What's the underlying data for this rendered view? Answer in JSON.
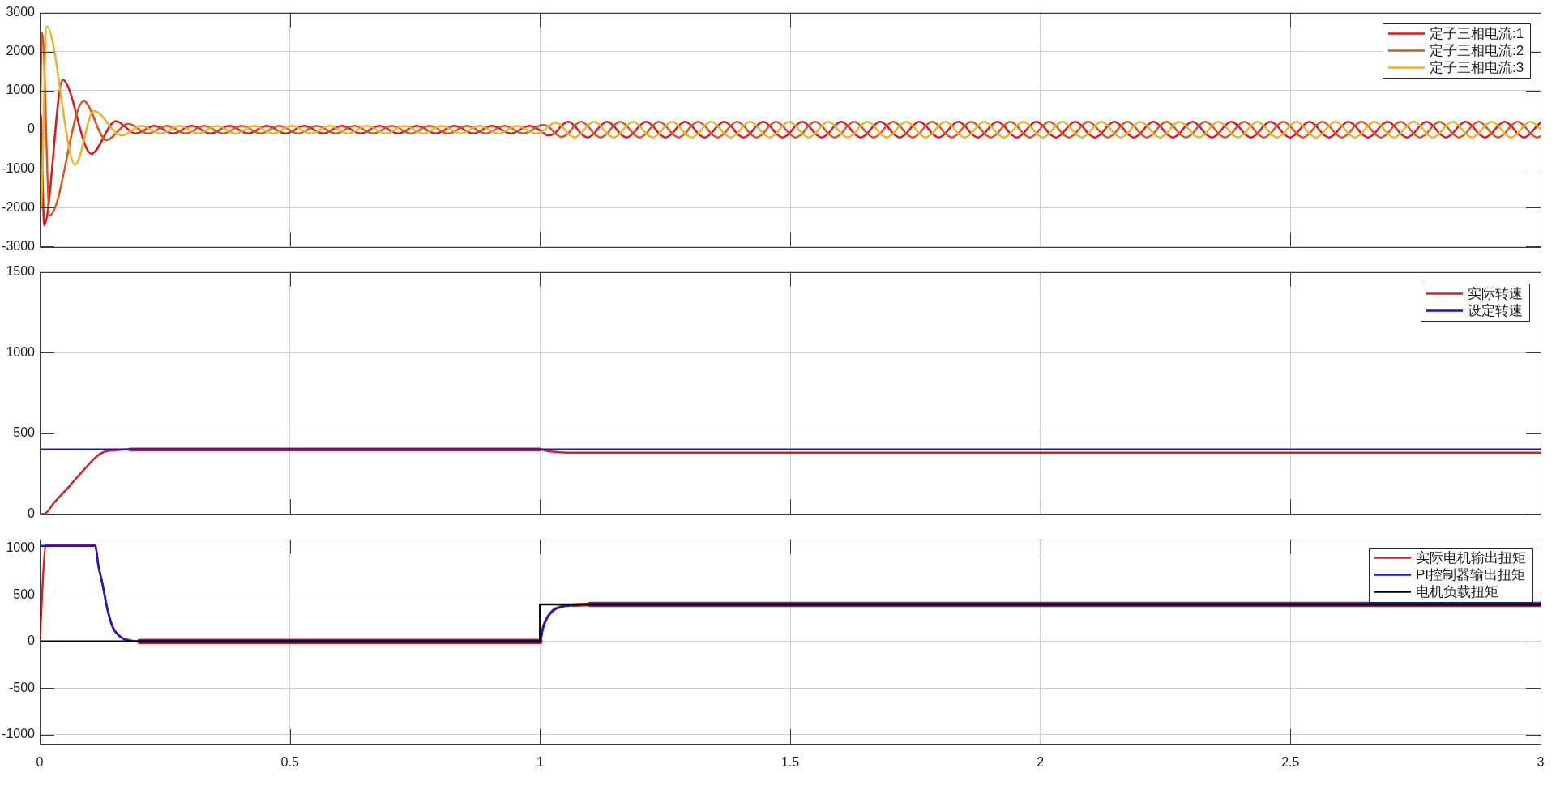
{
  "chart_data": [
    {
      "type": "line",
      "xlim": [
        0,
        3
      ],
      "xticks": [
        0,
        0.5,
        1,
        1.5,
        2,
        2.5,
        3
      ],
      "ylim": [
        -3000,
        3000
      ],
      "yticks": [
        -3000,
        -2000,
        -1000,
        0,
        1000,
        2000,
        3000
      ],
      "grid": true,
      "legend": "top right",
      "tick_labels": "y",
      "series": [
        {
          "name": "定子三相电流:1",
          "color": "#e0161b",
          "x": [
            0,
            0.002,
            0.009,
            0.046,
            0.103,
            0.152,
            0.192,
            0.229,
            0.2415,
            0.254,
            0.2665,
            0.279,
            0.2915,
            0.304,
            0.3165,
            0.329,
            0.3415,
            0.354,
            0.3665,
            0.379,
            0.3915,
            0.404,
            0.4165,
            0.429,
            0.4415,
            0.454,
            0.4665,
            0.479,
            0.4915,
            0.504,
            0.5165,
            0.529,
            0.5415,
            0.554,
            0.5665,
            0.579,
            0.5915,
            0.604,
            0.6165,
            0.629,
            0.6415,
            0.654,
            0.6665,
            0.679,
            0.6915,
            0.704,
            0.7165,
            0.729,
            0.7415,
            0.754,
            0.7665,
            0.779,
            0.7915,
            0.804,
            0.8165,
            0.829,
            0.8415,
            0.854,
            0.8665,
            0.879,
            0.8915,
            0.904,
            0.9165,
            0.929,
            0.9415,
            0.954,
            0.9665,
            0.979,
            0.9915,
            1.004,
            1.017,
            1.03,
            1.043,
            1.056,
            1.069,
            1.082,
            1.095,
            1.108,
            1.121,
            1.134,
            1.147,
            1.16,
            1.173,
            1.186,
            1.199,
            1.212,
            1.225,
            1.238,
            1.251,
            1.264,
            1.277,
            1.29,
            1.303,
            1.316,
            1.329,
            1.342,
            1.355,
            1.368,
            1.381,
            1.394,
            1.407,
            1.42,
            1.433,
            1.446,
            1.459,
            1.472,
            1.485,
            1.498,
            1.511,
            1.524,
            1.537,
            1.55,
            1.563,
            1.576,
            1.589,
            1.602,
            1.615,
            1.628,
            1.641,
            1.654,
            1.667,
            1.68,
            1.693,
            1.706,
            1.719,
            1.732,
            1.745,
            1.758,
            1.771,
            1.784,
            1.797,
            1.81,
            1.823,
            1.836,
            1.849,
            1.862,
            1.875,
            1.888,
            1.901,
            1.914,
            1.927,
            1.94,
            1.953,
            1.966,
            1.979,
            1.992,
            2.005,
            2.018,
            2.031,
            2.044,
            2.057,
            2.07,
            2.083,
            2.096,
            2.109,
            2.122,
            2.135,
            2.148,
            2.161,
            2.174,
            2.187,
            2.2,
            2.213,
            2.226,
            2.239,
            2.252,
            2.265,
            2.278,
            2.291,
            2.304,
            2.317,
            2.33,
            2.343,
            2.356,
            2.369,
            2.382,
            2.395,
            2.408,
            2.421,
            2.434,
            2.447,
            2.46,
            2.473,
            2.486,
            2.499,
            2.512,
            2.525,
            2.538,
            2.551,
            2.564,
            2.577,
            2.59,
            2.603,
            2.616,
            2.629,
            2.642,
            2.655,
            2.668,
            2.681,
            2.694,
            2.707,
            2.72,
            2.733,
            2.746,
            2.759,
            2.772,
            2.785,
            2.798,
            2.811,
            2.824,
            2.837,
            2.85,
            2.863,
            2.876,
            2.889,
            2.902,
            2.915,
            2.928,
            2.941,
            2.954,
            2.967,
            2.98,
            2.993,
            3
          ],
          "values": [
            0,
            400,
            -2450,
            1280,
            -620,
            220,
            -100,
            100,
            50,
            -50,
            -100,
            -50,
            50,
            100,
            50,
            -50,
            -100,
            -50,
            50,
            100,
            50,
            -50,
            -100,
            -50,
            50,
            100,
            50,
            -50,
            -100,
            -50,
            50,
            100,
            50,
            -50,
            -100,
            -50,
            50,
            100,
            50,
            -50,
            -100,
            -50,
            50,
            100,
            50,
            -50,
            -100,
            -50,
            50,
            100,
            50,
            -50,
            -100,
            -50,
            50,
            100,
            50,
            -50,
            -100,
            -50,
            50,
            100,
            50,
            -50,
            -100,
            -50,
            50,
            100,
            50,
            -60,
            -150,
            -90,
            100,
            200,
            100,
            -100,
            -200,
            -100,
            100,
            200,
            100,
            -100,
            -200,
            -100,
            100,
            200,
            100,
            -100,
            -200,
            -100,
            100,
            200,
            100,
            -100,
            -200,
            -100,
            100,
            200,
            100,
            -100,
            -200,
            -100,
            100,
            200,
            100,
            -100,
            -200,
            -100,
            100,
            200,
            100,
            -100,
            -200,
            -100,
            100,
            200,
            100,
            -100,
            -200,
            -100,
            100,
            200,
            100,
            -100,
            -200,
            -100,
            100,
            200,
            100,
            -100,
            -200,
            -100,
            100,
            200,
            100,
            -100,
            -200,
            -100,
            100,
            200,
            100,
            -100,
            -200,
            -100,
            100,
            200,
            100,
            -100,
            -200,
            -100,
            100,
            200,
            100,
            -100,
            -200,
            -100,
            100,
            200,
            100,
            -100,
            -200,
            -100,
            100,
            200,
            100,
            -100,
            -200,
            -100,
            100,
            200,
            100,
            -100,
            -200,
            -100,
            100,
            200,
            100,
            -100,
            -200,
            -100,
            100,
            200,
            100,
            -100,
            -200,
            -100,
            100,
            200,
            100,
            -100,
            -200,
            -100,
            100,
            200,
            100,
            -100,
            -200,
            -100,
            100,
            200,
            100,
            -100,
            -200,
            -100,
            100,
            200,
            100,
            -100,
            -200,
            -100,
            100,
            200,
            100,
            -100,
            -200,
            -100,
            100,
            200,
            100,
            -100,
            -200,
            -100,
            100,
            180
          ]
        },
        {
          "name": "定子三相电流:2",
          "color": "#d9541f",
          "x": [
            0,
            0.005,
            0.02,
            0.088,
            0.133,
            0.177,
            0.2165,
            0.229,
            0.2415,
            0.254,
            0.2665,
            0.279,
            0.2915,
            0.304,
            0.3165,
            0.329,
            0.3415,
            0.354,
            0.3665,
            0.379,
            0.3915,
            0.404,
            0.4165,
            0.429,
            0.4415,
            0.454,
            0.4665,
            0.479,
            0.4915,
            0.504,
            0.5165,
            0.529,
            0.5415,
            0.554,
            0.5665,
            0.579,
            0.5915,
            0.604,
            0.6165,
            0.629,
            0.6415,
            0.654,
            0.6665,
            0.679,
            0.6915,
            0.704,
            0.7165,
            0.729,
            0.7415,
            0.754,
            0.7665,
            0.779,
            0.7915,
            0.804,
            0.8165,
            0.829,
            0.8415,
            0.854,
            0.8665,
            0.879,
            0.8915,
            0.904,
            0.9165,
            0.929,
            0.9415,
            0.954,
            0.9665,
            0.979,
            0.9915,
            1.004,
            1.017,
            1.03,
            1.043,
            1.056,
            1.069,
            1.082,
            1.095,
            1.108,
            1.121,
            1.134,
            1.147,
            1.16,
            1.173,
            1.186,
            1.199,
            1.212,
            1.225,
            1.238,
            1.251,
            1.264,
            1.277,
            1.29,
            1.303,
            1.316,
            1.329,
            1.342,
            1.355,
            1.368,
            1.381,
            1.394,
            1.407,
            1.42,
            1.433,
            1.446,
            1.459,
            1.472,
            1.485,
            1.498,
            1.511,
            1.524,
            1.537,
            1.55,
            1.563,
            1.576,
            1.589,
            1.602,
            1.615,
            1.628,
            1.641,
            1.654,
            1.667,
            1.68,
            1.693,
            1.706,
            1.719,
            1.732,
            1.745,
            1.758,
            1.771,
            1.784,
            1.797,
            1.81,
            1.823,
            1.836,
            1.849,
            1.862,
            1.875,
            1.888,
            1.901,
            1.914,
            1.927,
            1.94,
            1.953,
            1.966,
            1.979,
            1.992,
            2.005,
            2.018,
            2.031,
            2.044,
            2.057,
            2.07,
            2.083,
            2.096,
            2.109,
            2.122,
            2.135,
            2.148,
            2.161,
            2.174,
            2.187,
            2.2,
            2.213,
            2.226,
            2.239,
            2.252,
            2.265,
            2.278,
            2.291,
            2.304,
            2.317,
            2.33,
            2.343,
            2.356,
            2.369,
            2.382,
            2.395,
            2.408,
            2.421,
            2.434,
            2.447,
            2.46,
            2.473,
            2.486,
            2.499,
            2.512,
            2.525,
            2.538,
            2.551,
            2.564,
            2.577,
            2.59,
            2.603,
            2.616,
            2.629,
            2.642,
            2.655,
            2.668,
            2.681,
            2.694,
            2.707,
            2.72,
            2.733,
            2.746,
            2.759,
            2.772,
            2.785,
            2.798,
            2.811,
            2.824,
            2.837,
            2.85,
            2.863,
            2.876,
            2.889,
            2.902,
            2.915,
            2.928,
            2.941,
            2.954,
            2.967,
            2.98,
            2.993,
            3
          ],
          "values": [
            0,
            2480,
            -2200,
            730,
            -270,
            150,
            -100,
            -50,
            50,
            100,
            50,
            -50,
            -100,
            -50,
            50,
            100,
            50,
            -50,
            -100,
            -50,
            50,
            100,
            50,
            -50,
            -100,
            -50,
            50,
            100,
            50,
            -50,
            -100,
            -50,
            50,
            100,
            50,
            -50,
            -100,
            -50,
            50,
            100,
            50,
            -50,
            -100,
            -50,
            50,
            100,
            50,
            -50,
            -100,
            -50,
            50,
            100,
            50,
            -50,
            -100,
            -50,
            50,
            100,
            50,
            -50,
            -100,
            -50,
            50,
            100,
            50,
            -50,
            -100,
            -50,
            50,
            120,
            80,
            -90,
            -190,
            -100,
            100,
            200,
            100,
            -100,
            -200,
            -100,
            100,
            200,
            100,
            -100,
            -200,
            -100,
            100,
            200,
            100,
            -100,
            -200,
            -100,
            100,
            200,
            100,
            -100,
            -200,
            -100,
            100,
            200,
            100,
            -100,
            -200,
            -100,
            100,
            200,
            100,
            -100,
            -200,
            -100,
            100,
            200,
            100,
            -100,
            -200,
            -100,
            100,
            200,
            100,
            -100,
            -200,
            -100,
            100,
            200,
            100,
            -100,
            -200,
            -100,
            100,
            200,
            100,
            -100,
            -200,
            -100,
            100,
            200,
            100,
            -100,
            -200,
            -100,
            100,
            200,
            100,
            -100,
            -200,
            -100,
            100,
            200,
            100,
            -100,
            -200,
            -100,
            100,
            200,
            100,
            -100,
            -200,
            -100,
            100,
            200,
            100,
            -100,
            -200,
            -100,
            100,
            200,
            100,
            -100,
            -200,
            -100,
            100,
            200,
            100,
            -100,
            -200,
            -100,
            100,
            200,
            100,
            -100,
            -200,
            -100,
            100,
            200,
            100,
            -100,
            -200,
            -100,
            100,
            200,
            100,
            -100,
            -200,
            -100,
            100,
            200,
            100,
            -100,
            -200,
            -100,
            100,
            200,
            100,
            -100,
            -200,
            -100,
            100,
            200,
            100,
            -100,
            -200,
            -100,
            100,
            200,
            100,
            -100,
            -200,
            -100,
            100,
            200,
            100,
            -100,
            -200,
            -170
          ]
        },
        {
          "name": "定子三相电流:3",
          "color": "#ebb12a",
          "x": [
            0,
            0.002,
            0.014,
            0.071,
            0.108,
            0.164,
            0.204,
            0.229,
            0.2415,
            0.254,
            0.2665,
            0.279,
            0.2915,
            0.304,
            0.3165,
            0.329,
            0.3415,
            0.354,
            0.3665,
            0.379,
            0.3915,
            0.404,
            0.4165,
            0.429,
            0.4415,
            0.454,
            0.4665,
            0.479,
            0.4915,
            0.504,
            0.5165,
            0.529,
            0.5415,
            0.554,
            0.5665,
            0.579,
            0.5915,
            0.604,
            0.6165,
            0.629,
            0.6415,
            0.654,
            0.6665,
            0.679,
            0.6915,
            0.704,
            0.7165,
            0.729,
            0.7415,
            0.754,
            0.7665,
            0.779,
            0.7915,
            0.804,
            0.8165,
            0.829,
            0.8415,
            0.854,
            0.8665,
            0.879,
            0.8915,
            0.904,
            0.9165,
            0.929,
            0.9415,
            0.954,
            0.9665,
            0.979,
            0.9915,
            1.004,
            1.017,
            1.03,
            1.043,
            1.056,
            1.069,
            1.082,
            1.095,
            1.108,
            1.121,
            1.134,
            1.147,
            1.16,
            1.173,
            1.186,
            1.199,
            1.212,
            1.225,
            1.238,
            1.251,
            1.264,
            1.277,
            1.29,
            1.303,
            1.316,
            1.329,
            1.342,
            1.355,
            1.368,
            1.381,
            1.394,
            1.407,
            1.42,
            1.433,
            1.446,
            1.459,
            1.472,
            1.485,
            1.498,
            1.511,
            1.524,
            1.537,
            1.55,
            1.563,
            1.576,
            1.589,
            1.602,
            1.615,
            1.628,
            1.641,
            1.654,
            1.667,
            1.68,
            1.693,
            1.706,
            1.719,
            1.732,
            1.745,
            1.758,
            1.771,
            1.784,
            1.797,
            1.81,
            1.823,
            1.836,
            1.849,
            1.862,
            1.875,
            1.888,
            1.901,
            1.914,
            1.927,
            1.94,
            1.953,
            1.966,
            1.979,
            1.992,
            2.005,
            2.018,
            2.031,
            2.044,
            2.057,
            2.07,
            2.083,
            2.096,
            2.109,
            2.122,
            2.135,
            2.148,
            2.161,
            2.174,
            2.187,
            2.2,
            2.213,
            2.226,
            2.239,
            2.252,
            2.265,
            2.278,
            2.291,
            2.304,
            2.317,
            2.33,
            2.343,
            2.356,
            2.369,
            2.382,
            2.395,
            2.408,
            2.421,
            2.434,
            2.447,
            2.46,
            2.473,
            2.486,
            2.499,
            2.512,
            2.525,
            2.538,
            2.551,
            2.564,
            2.577,
            2.59,
            2.603,
            2.616,
            2.629,
            2.642,
            2.655,
            2.668,
            2.681,
            2.694,
            2.707,
            2.72,
            2.733,
            2.746,
            2.759,
            2.772,
            2.785,
            2.798,
            2.811,
            2.824,
            2.837,
            2.85,
            2.863,
            2.876,
            2.889,
            2.902,
            2.915,
            2.928,
            2.941,
            2.954,
            2.967,
            2.98,
            2.993,
            3
          ],
          "values": [
            0,
            -2050,
            2650,
            -900,
            480,
            -150,
            100,
            -50,
            -100,
            -50,
            50,
            100,
            50,
            -50,
            -100,
            -50,
            50,
            100,
            50,
            -50,
            -100,
            -50,
            50,
            100,
            50,
            -50,
            -100,
            -50,
            50,
            100,
            50,
            -50,
            -100,
            -50,
            50,
            100,
            50,
            -50,
            -100,
            -50,
            50,
            100,
            50,
            -50,
            -100,
            -50,
            50,
            100,
            50,
            -50,
            -100,
            -50,
            50,
            100,
            50,
            -50,
            -100,
            -50,
            50,
            100,
            50,
            -50,
            -100,
            -50,
            50,
            100,
            50,
            -50,
            -100,
            -60,
            80,
            180,
            100,
            -100,
            -200,
            -100,
            100,
            200,
            100,
            -100,
            -200,
            -100,
            100,
            200,
            100,
            -100,
            -200,
            -100,
            100,
            200,
            100,
            -100,
            -200,
            -100,
            100,
            200,
            100,
            -100,
            -200,
            -100,
            100,
            200,
            100,
            -100,
            -200,
            -100,
            100,
            200,
            100,
            -100,
            -200,
            -100,
            100,
            200,
            100,
            -100,
            -200,
            -100,
            100,
            200,
            100,
            -100,
            -200,
            -100,
            100,
            200,
            100,
            -100,
            -200,
            -100,
            100,
            200,
            100,
            -100,
            -200,
            -100,
            100,
            200,
            100,
            -100,
            -200,
            -100,
            100,
            200,
            100,
            -100,
            -200,
            -100,
            100,
            200,
            100,
            -100,
            -200,
            -100,
            100,
            200,
            100,
            -100,
            -200,
            -100,
            100,
            200,
            100,
            -100,
            -200,
            -100,
            100,
            200,
            100,
            -100,
            -200,
            -100,
            100,
            200,
            100,
            -100,
            -200,
            -100,
            100,
            200,
            100,
            -100,
            -200,
            -100,
            100,
            200,
            100,
            -100,
            -200,
            -100,
            100,
            200,
            100,
            -100,
            -200,
            -100,
            100,
            200,
            100,
            -100,
            -200,
            -100,
            100,
            200,
            100,
            -100,
            -200,
            -100,
            100,
            200,
            100,
            -100,
            -200,
            -100,
            100,
            200,
            100,
            -100,
            -200,
            -100,
            100,
            200,
            100,
            0
          ]
        }
      ]
    },
    {
      "type": "line",
      "xlim": [
        0,
        3
      ],
      "xticks": [
        0,
        0.5,
        1,
        1.5,
        2,
        2.5,
        3
      ],
      "ylim": [
        0,
        1500
      ],
      "yticks": [
        0,
        500,
        1000,
        1500
      ],
      "grid": true,
      "legend": "top right",
      "tick_labels": "y",
      "series": [
        {
          "name": "实际转速",
          "color": "#d81f1f",
          "x": [
            0,
            0.008,
            0.03,
            0.06,
            0.09,
            0.115,
            0.129,
            0.151,
            0.18,
            1,
            1.015,
            1.03,
            1.06,
            3
          ],
          "values": [
            0,
            0,
            75,
            175,
            280,
            360,
            385,
            395,
            400,
            400,
            390,
            385,
            380,
            380
          ]
        },
        {
          "name": "设定转速",
          "color": "#1414d2",
          "x": [
            0,
            3
          ],
          "values": [
            400,
            400
          ]
        }
      ]
    },
    {
      "type": "line",
      "xlim": [
        0,
        3
      ],
      "xticks": [
        0,
        0.5,
        1,
        1.5,
        2,
        2.5,
        3
      ],
      "ylim": [
        -1100,
        1100
      ],
      "yticks": [
        -1000,
        -500,
        0,
        500,
        1000
      ],
      "grid": true,
      "legend": "top right",
      "series": [
        {
          "name": "实际电机输出扭矩",
          "color": "#dc2020",
          "x": [
            0,
            0.012,
            0.02,
            0.111,
            0.117,
            0.126,
            0.1355,
            0.146,
            0.159,
            0.175,
            0.2,
            1,
            1.006,
            1.014,
            1.026,
            1.042,
            1.067,
            1.1,
            3
          ],
          "values": [
            0,
            1030,
            1040,
            1040,
            820,
            610,
            350,
            160,
            60,
            20,
            0,
            0,
            160,
            260,
            340,
            380,
            390,
            400,
            400
          ]
        },
        {
          "name": "PI控制器输出扭矩",
          "color": "#1818cc",
          "x": [
            0,
            0.111,
            0.117,
            0.126,
            0.1355,
            0.146,
            0.159,
            0.175,
            0.2,
            1,
            1.006,
            1.014,
            1.026,
            1.042,
            1.067,
            1.1,
            3
          ],
          "values": [
            1030,
            1030,
            830,
            600,
            340,
            150,
            60,
            10,
            0,
            0,
            140,
            250,
            330,
            370,
            390,
            400,
            400
          ]
        },
        {
          "name": "电机负载扭矩",
          "color": "#000000",
          "x": [
            0,
            1,
            1,
            3
          ],
          "values": [
            0,
            0,
            400,
            400
          ]
        }
      ]
    }
  ]
}
